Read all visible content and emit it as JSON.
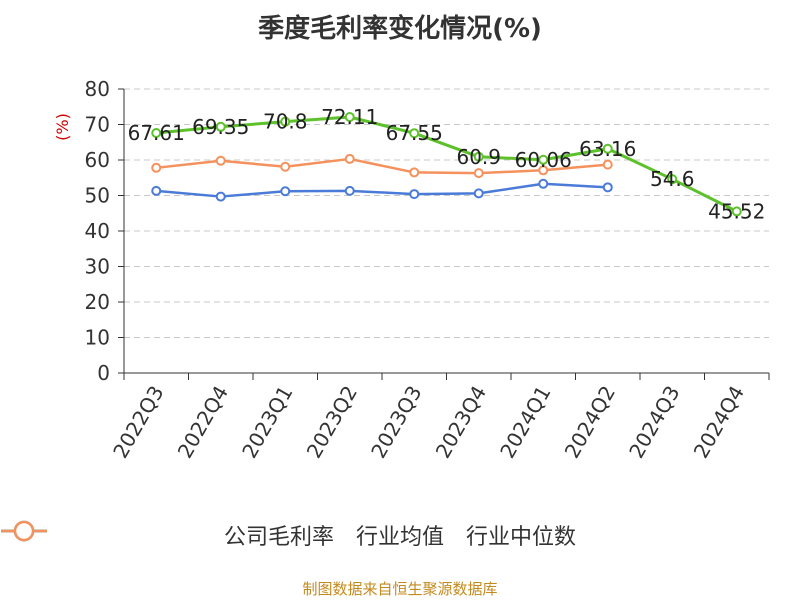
{
  "chart_data": {
    "type": "line",
    "title": "季度毛利率变化情况(%)",
    "ylabel": "(%)",
    "xlabel": "",
    "ylim": [
      0,
      80
    ],
    "yticks": [
      0,
      10,
      20,
      30,
      40,
      50,
      60,
      70,
      80
    ],
    "grid": true,
    "legend_position": "bottom",
    "categories": [
      "2022Q3",
      "2022Q4",
      "2023Q1",
      "2023Q2",
      "2023Q3",
      "2023Q4",
      "2024Q1",
      "2024Q2",
      "2024Q3",
      "2024Q4"
    ],
    "series": [
      {
        "name": "公司毛利率",
        "color": "#5dc12b",
        "values": [
          67.61,
          69.35,
          70.8,
          72.11,
          67.55,
          60.9,
          60.06,
          63.16,
          54.6,
          45.52
        ],
        "labels": [
          "67.61",
          "69.35",
          "70.8",
          "72.11",
          "67.55",
          "60.9",
          "60.06",
          "63.16",
          "54.6",
          "45.52"
        ]
      },
      {
        "name": "行业均值",
        "color": "#4a7bd8",
        "values": [
          51.3,
          49.7,
          51.2,
          51.3,
          50.4,
          50.6,
          53.3,
          52.3,
          null,
          null
        ]
      },
      {
        "name": "行业中位数",
        "color": "#f4915c",
        "values": [
          57.8,
          59.8,
          58.1,
          60.3,
          56.5,
          56.3,
          57.1,
          58.7,
          null,
          null
        ]
      }
    ]
  },
  "footer": {
    "source": "制图数据来自恒生聚源数据库"
  }
}
